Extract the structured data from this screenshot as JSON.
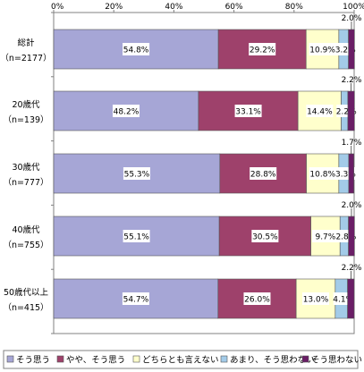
{
  "chart_data": {
    "type": "bar",
    "orientation": "horizontal",
    "stacked": "percent",
    "x_ticks": [
      "0%",
      "20%",
      "40%",
      "60%",
      "80%",
      "100%"
    ],
    "xlim": [
      0,
      100
    ],
    "grid": true,
    "legend_position": "bottom",
    "categories": [
      {
        "label": "総計",
        "sub": "（n=2177）"
      },
      {
        "label": "20歳代",
        "sub": "（n=139）"
      },
      {
        "label": "30歳代",
        "sub": "（n=777）"
      },
      {
        "label": "40歳代",
        "sub": "（n=755）"
      },
      {
        "label": "50歳代以上",
        "sub": "（n=415）"
      }
    ],
    "series": [
      {
        "name": "そう思う",
        "color": "#a6a6d6",
        "values": [
          54.8,
          48.2,
          55.3,
          55.1,
          54.7
        ],
        "labels": [
          "54.8%",
          "48.2%",
          "55.3%",
          "55.1%",
          "54.7%"
        ]
      },
      {
        "name": "やや、そう思う",
        "color": "#9e416b",
        "values": [
          29.2,
          33.1,
          28.8,
          30.5,
          26.0
        ],
        "labels": [
          "29.2%",
          "33.1%",
          "28.8%",
          "30.5%",
          "26.0%"
        ]
      },
      {
        "name": "どちらとも言えない",
        "color": "#ffffcc",
        "values": [
          10.9,
          14.4,
          10.8,
          9.7,
          13.0
        ],
        "labels": [
          "10.9%",
          "14.4%",
          "10.8%",
          "9.7%",
          "13.0%"
        ]
      },
      {
        "name": "あまり、そう思わない",
        "color": "#a3cbe8",
        "values": [
          3.2,
          2.2,
          3.3,
          2.8,
          4.1
        ],
        "labels": [
          "3.2%",
          "2.2%",
          "3.3%",
          "2.8%",
          "4.1%"
        ]
      },
      {
        "name": "そう思わない",
        "color": "#6a1e66",
        "values": [
          2.0,
          2.2,
          1.7,
          2.0,
          2.2
        ],
        "labels": [
          "2.0%",
          "2.2%",
          "1.7%",
          "2.0%",
          "2.2%"
        ]
      }
    ]
  }
}
